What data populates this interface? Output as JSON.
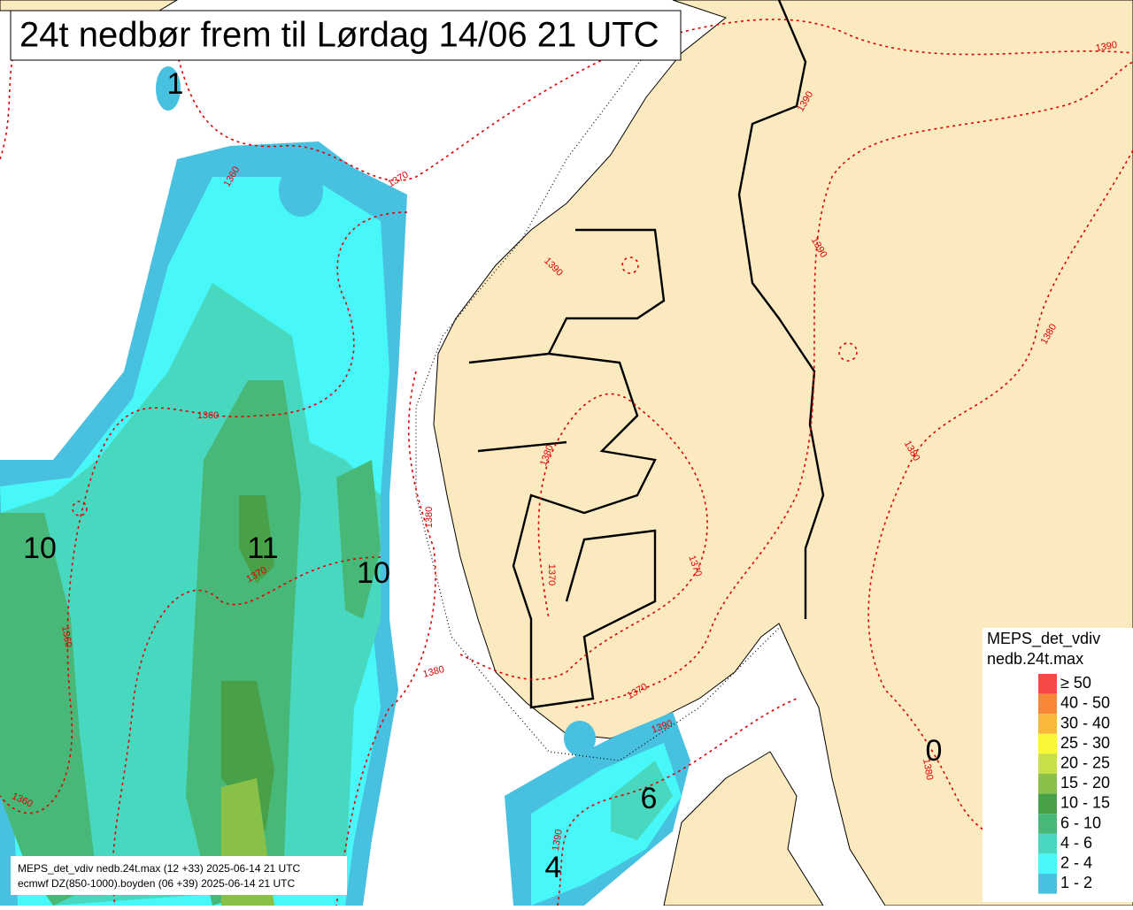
{
  "header": {
    "title": "24t nedbør frem til Lørdag 14/06 21 UTC"
  },
  "map": {
    "precip_labels": [
      1,
      10,
      11,
      10,
      6,
      4,
      0
    ],
    "contour_labels": [
      1360,
      1370,
      1380,
      1390,
      1360,
      1370,
      1380,
      1390,
      1390,
      1380,
      1360,
      1370,
      1380,
      1390,
      1380,
      1360,
      1370,
      1370,
      1380,
      1390,
      1380,
      1390,
      1390
    ]
  },
  "legend": {
    "title": [
      "MEPS_det_vdiv",
      "nedb.24t.max"
    ],
    "entries": [
      {
        "label": "≥ 50",
        "color": "#f84848"
      },
      {
        "label": "40 - 50",
        "color": "#f88838"
      },
      {
        "label": "30 - 40",
        "color": "#f8b838"
      },
      {
        "label": "25 - 30",
        "color": "#f8f838"
      },
      {
        "label": "20 - 25",
        "color": "#c8e048"
      },
      {
        "label": "15 - 20",
        "color": "#88c048"
      },
      {
        "label": "10 - 15",
        "color": "#48a048"
      },
      {
        "label": "6 - 10",
        "color": "#48b878"
      },
      {
        "label": "4 - 6",
        "color": "#48d8c0"
      },
      {
        "label": "2 - 4",
        "color": "#48f8f8"
      },
      {
        "label": "1 - 2",
        "color": "#48c0e0"
      }
    ]
  },
  "footer": [
    "MEPS_det_vdiv nedb.24t.max (12 +33) 2025-06-14 21 UTC",
    "ecmwf DZ(850-1000).boyden (06 +39) 2025-06-14 21 UTC"
  ]
}
